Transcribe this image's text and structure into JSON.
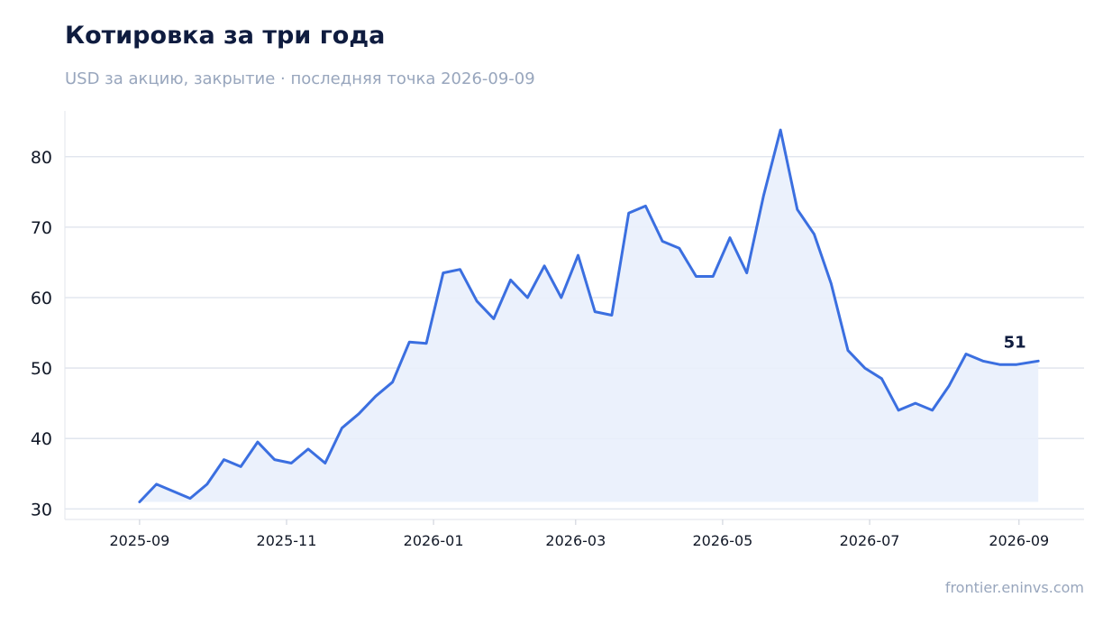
{
  "title": "Котировка за три года",
  "subtitle": "USD за акцию, закрытие · последняя точка 2026-09-09",
  "credit": "frontier.eninvs.com",
  "colors": {
    "line": "#3b6fe0",
    "fill": "#e9effc",
    "grid": "#dde2ec",
    "axis": "#e5e8ee"
  },
  "chart_data": {
    "type": "line",
    "ylim": [
      28.5,
      86.5
    ],
    "yticks": [
      30,
      40,
      50,
      60,
      70,
      80
    ],
    "xlim": [
      "2025-08-01",
      "2026-09-28"
    ],
    "xticks": [
      "2025-09",
      "2025-11",
      "2026-01",
      "2026-03",
      "2026-05",
      "2026-07",
      "2026-09"
    ],
    "grid": true,
    "end_label": "51",
    "series": [
      {
        "x": [
          "2025-09-01",
          "2025-09-08",
          "2025-09-15",
          "2025-09-22",
          "2025-09-29",
          "2025-10-06",
          "2025-10-13",
          "2025-10-20",
          "2025-10-27",
          "2025-11-03",
          "2025-11-10",
          "2025-11-17",
          "2025-11-24",
          "2025-12-01",
          "2025-12-08",
          "2025-12-15",
          "2025-12-22",
          "2025-12-29",
          "2026-01-05",
          "2026-01-12",
          "2026-01-19",
          "2026-01-26",
          "2026-02-02",
          "2026-02-09",
          "2026-02-16",
          "2026-02-23",
          "2026-03-02",
          "2026-03-09",
          "2026-03-16",
          "2026-03-23",
          "2026-03-30",
          "2026-04-06",
          "2026-04-13",
          "2026-04-20",
          "2026-04-27",
          "2026-05-04",
          "2026-05-11",
          "2026-05-18",
          "2026-05-25",
          "2026-06-01",
          "2026-06-08",
          "2026-06-15",
          "2026-06-22",
          "2026-06-29",
          "2026-07-06",
          "2026-07-13",
          "2026-07-20",
          "2026-07-27",
          "2026-08-03",
          "2026-08-10",
          "2026-08-17",
          "2026-08-24",
          "2026-08-31",
          "2026-09-09"
        ],
        "y": [
          31.0,
          33.5,
          32.5,
          31.5,
          33.5,
          37.0,
          36.0,
          39.5,
          37.0,
          36.5,
          38.5,
          36.5,
          41.5,
          43.5,
          46.0,
          48.0,
          53.7,
          53.5,
          63.5,
          64.0,
          59.5,
          57.0,
          62.5,
          60.0,
          64.5,
          60.0,
          66.0,
          58.0,
          57.5,
          72.0,
          73.0,
          68.0,
          67.0,
          63.0,
          63.0,
          68.5,
          63.5,
          74.5,
          83.8,
          72.5,
          69.0,
          62.0,
          52.5,
          50.0,
          48.5,
          44.0,
          45.0,
          44.0,
          47.5,
          52.0,
          51.0,
          50.5,
          50.5,
          51.0
        ]
      }
    ]
  }
}
